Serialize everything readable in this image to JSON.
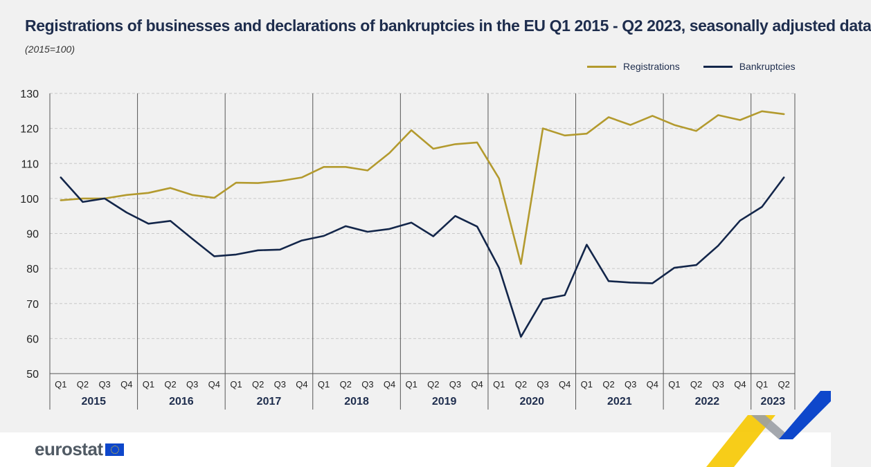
{
  "header": {
    "title": "Registrations of businesses and declarations of bankruptcies in the EU Q1 2015 - Q2 2023, seasonally adjusted data",
    "subtitle": "(2015=100)"
  },
  "footer": {
    "logo_text": "eurostat"
  },
  "colors": {
    "registrations": "#b39a2e",
    "bankruptcies": "#13264a"
  },
  "chart_data": {
    "type": "line",
    "years": [
      "2015",
      "2016",
      "2017",
      "2018",
      "2019",
      "2020",
      "2021",
      "2022",
      "2023"
    ],
    "quarters": [
      "Q1",
      "Q2",
      "Q3",
      "Q4",
      "Q1",
      "Q2",
      "Q3",
      "Q4",
      "Q1",
      "Q2",
      "Q3",
      "Q4",
      "Q1",
      "Q2",
      "Q3",
      "Q4",
      "Q1",
      "Q2",
      "Q3",
      "Q4",
      "Q1",
      "Q2",
      "Q3",
      "Q4",
      "Q1",
      "Q2",
      "Q3",
      "Q4",
      "Q1",
      "Q2",
      "Q3",
      "Q4",
      "Q1",
      "Q2"
    ],
    "x": [
      "2015Q1",
      "2015Q2",
      "2015Q3",
      "2015Q4",
      "2016Q1",
      "2016Q2",
      "2016Q3",
      "2016Q4",
      "2017Q1",
      "2017Q2",
      "2017Q3",
      "2017Q4",
      "2018Q1",
      "2018Q2",
      "2018Q3",
      "2018Q4",
      "2019Q1",
      "2019Q2",
      "2019Q3",
      "2019Q4",
      "2020Q1",
      "2020Q2",
      "2020Q3",
      "2020Q4",
      "2021Q1",
      "2021Q2",
      "2021Q3",
      "2021Q4",
      "2022Q1",
      "2022Q2",
      "2022Q3",
      "2022Q4",
      "2023Q1",
      "2023Q2"
    ],
    "series": [
      {
        "name": "Registrations",
        "color": "#b39a2e",
        "values": [
          99.5,
          100,
          100,
          101,
          101.6,
          103,
          101,
          100.2,
          104.5,
          104.4,
          105,
          106,
          109,
          109,
          108,
          113,
          119.5,
          114.2,
          115.5,
          116,
          105.7,
          81.3,
          120,
          118,
          118.5,
          123.2,
          121,
          123.6,
          121,
          119.3,
          123.8,
          122.4,
          124.9,
          124.1
        ]
      },
      {
        "name": "Bankruptcies",
        "color": "#13264a",
        "values": [
          106,
          99,
          100,
          96,
          92.8,
          93.6,
          88.5,
          83.5,
          84,
          85.2,
          85.4,
          88,
          89.3,
          92.1,
          90.5,
          91.3,
          93.1,
          89.2,
          95,
          92,
          80.2,
          60.5,
          71.2,
          72.4,
          86.8,
          76.4,
          76,
          75.8,
          80.2,
          81,
          86.5,
          93.7,
          97.6,
          106
        ]
      }
    ],
    "ylim": [
      50,
      130
    ],
    "yticks": [
      50,
      60,
      70,
      80,
      90,
      100,
      110,
      120,
      130
    ],
    "legend": "top-right",
    "grid": "horizontal-dashed"
  }
}
